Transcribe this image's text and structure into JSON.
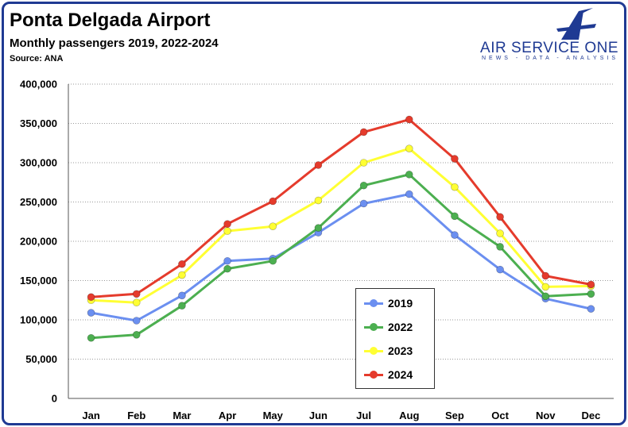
{
  "header": {
    "title": "Ponta Delgada Airport",
    "subtitle": "Monthly passengers 2019, 2022-2024",
    "source": "Source: ANA"
  },
  "logo": {
    "name": "AIR SERVICE ONE",
    "tagline": "NEWS - DATA - ANALYSIS",
    "icon": "plane-a-logo-icon",
    "color": "#1f3a93"
  },
  "chart_data": {
    "type": "line",
    "title": "Monthly passengers 2019, 2022-2024",
    "categories": [
      "Jan",
      "Feb",
      "Mar",
      "Apr",
      "May",
      "Jun",
      "Jul",
      "Aug",
      "Sep",
      "Oct",
      "Nov",
      "Dec"
    ],
    "ylim": [
      0,
      400000
    ],
    "yticks": [
      0,
      50000,
      100000,
      150000,
      200000,
      250000,
      300000,
      350000,
      400000
    ],
    "ytick_labels": [
      "0",
      "50,000",
      "100,000",
      "150,000",
      "200,000",
      "250,000",
      "300,000",
      "350,000",
      "400,000"
    ],
    "grid": "horizontal dotted",
    "legend_position": "bottom-center",
    "series": [
      {
        "name": "2019",
        "color": "#6b8ff0",
        "values": [
          109000,
          99000,
          131000,
          175000,
          178000,
          211000,
          248000,
          260000,
          208000,
          164000,
          127000,
          114000
        ]
      },
      {
        "name": "2022",
        "color": "#4caf50",
        "values": [
          77000,
          81000,
          118000,
          165000,
          175000,
          217000,
          271000,
          285000,
          232000,
          193000,
          130000,
          133000
        ]
      },
      {
        "name": "2023",
        "color": "#ffff33",
        "values": [
          125000,
          122000,
          157000,
          213000,
          219000,
          252000,
          300000,
          318000,
          269000,
          210000,
          142000,
          143000
        ]
      },
      {
        "name": "2024",
        "color": "#e53b2c",
        "values": [
          129000,
          133000,
          171000,
          222000,
          251000,
          297000,
          339000,
          355000,
          305000,
          231000,
          156000,
          145000
        ]
      }
    ]
  }
}
